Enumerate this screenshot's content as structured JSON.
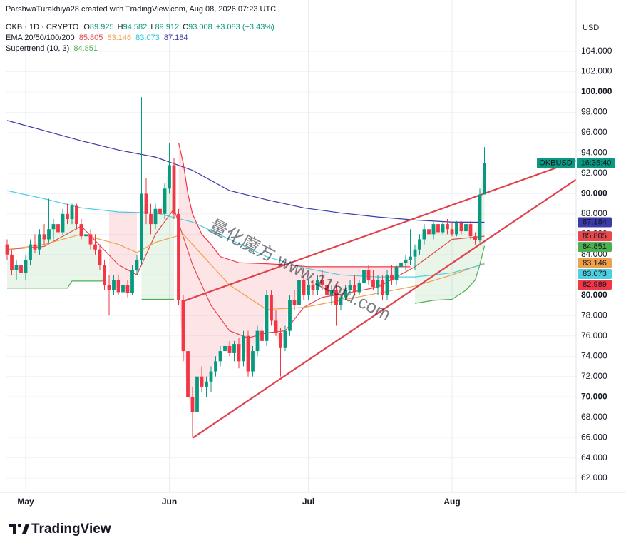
{
  "header": {
    "credit": "ParshwaTurakhiya28 created with TradingView.com, Aug 08, 2026 07:23 UTC",
    "symbol": "OKB · 1D · CRYPTO",
    "ohlc_letters": [
      "O",
      "H",
      "L",
      "C"
    ],
    "change": "+3.083 (+3.43%)",
    "currency": "USD"
  },
  "watermark": "量化魔方 www.11btu.com",
  "footer": {
    "brand": "TradingView"
  },
  "chart_data": {
    "type": "candlestick",
    "categories": [
      null,
      null,
      null,
      null,
      "May",
      null,
      null,
      null,
      null,
      null,
      null,
      null,
      null,
      null,
      null,
      null,
      null,
      null,
      null,
      null,
      null,
      null,
      null,
      null,
      null,
      null,
      null,
      null,
      null,
      null,
      null,
      null,
      null,
      null,
      null,
      "Jun",
      null,
      null,
      null,
      null,
      null,
      null,
      null,
      null,
      null,
      null,
      null,
      null,
      null,
      null,
      null,
      null,
      null,
      null,
      null,
      null,
      null,
      null,
      null,
      null,
      null,
      null,
      null,
      null,
      null,
      "Jul",
      null,
      null,
      null,
      null,
      null,
      null,
      null,
      null,
      null,
      null,
      null,
      null,
      null,
      null,
      null,
      null,
      null,
      null,
      null,
      null,
      null,
      null,
      null,
      null,
      null,
      null,
      null,
      null,
      null,
      null,
      "Aug",
      null,
      null,
      null,
      null,
      null,
      null,
      null
    ],
    "candles": {
      "up_color": "#089981",
      "down_color": "#f23645",
      "open": [
        85,
        84,
        82.5,
        83,
        82.2,
        83.5,
        85,
        84.5,
        86,
        85.5,
        86.5,
        87,
        86.2,
        88,
        87.5,
        88.8,
        87,
        85.8,
        86,
        85,
        84.5,
        83,
        81,
        80.5,
        81.5,
        80.3,
        81,
        80.2,
        82.5,
        83.5,
        90,
        88,
        87,
        88.5,
        88,
        90.5,
        92.8,
        88,
        79.5,
        74.5,
        70,
        68.5,
        72,
        71,
        71.5,
        72.5,
        73.5,
        74.5,
        75,
        74.3,
        75.2,
        73.5,
        76,
        72.5,
        74.5,
        76.5,
        75.5,
        80,
        77.5,
        76.3,
        74.8,
        76.5,
        79.5,
        79,
        81.5,
        80,
        81,
        80.5,
        81.5,
        81,
        80,
        80.5,
        79,
        79.8,
        80.5,
        81,
        80.3,
        81.2,
        82.5,
        81.5,
        80.8,
        81.5,
        80,
        82,
        81.5,
        82.8,
        83.2,
        83.5,
        83.8,
        84.5,
        85.5,
        86.5,
        86,
        87,
        86.2,
        87,
        86.5,
        86,
        87.1,
        86.3,
        87,
        85.8,
        85.4,
        89.925
      ],
      "high": [
        85.5,
        84.5,
        83.5,
        83.8,
        84,
        85.5,
        86,
        86.5,
        87,
        89.5,
        87.5,
        88,
        88.5,
        89,
        89,
        89,
        87.5,
        86.5,
        86.5,
        86,
        85,
        83.5,
        82,
        82,
        82,
        81.5,
        81.5,
        83,
        84,
        99.5,
        91.5,
        89,
        89,
        91,
        91,
        95,
        93.5,
        88.5,
        80,
        75,
        71,
        72.5,
        73,
        72,
        73,
        74,
        75,
        75.5,
        75.5,
        75.5,
        75.8,
        76.5,
        76.5,
        75,
        77,
        77,
        80.5,
        80.5,
        78.5,
        76.8,
        77,
        80,
        80.5,
        82,
        82,
        81.5,
        81.5,
        82,
        82.5,
        82,
        81,
        81,
        80,
        81,
        81.5,
        82,
        81.5,
        83,
        83,
        82.5,
        82,
        82,
        82.5,
        83,
        83,
        83.5,
        84,
        86.5,
        85,
        86,
        87,
        87.5,
        87.2,
        87.5,
        87.3,
        87.5,
        87.2,
        87.3,
        87.3,
        87.2,
        87.3,
        86.2,
        90.5,
        94.582
      ],
      "low": [
        83.5,
        82,
        81.5,
        81.8,
        81.5,
        83,
        84.2,
        84,
        85,
        85.2,
        85.5,
        86,
        86,
        87,
        87,
        86.5,
        85.5,
        84.5,
        84.5,
        84,
        82.5,
        80.5,
        78,
        80,
        80,
        79.8,
        79.8,
        80,
        82,
        83,
        87,
        86,
        86.5,
        86.5,
        87.5,
        90,
        87.5,
        79,
        73.5,
        68,
        66,
        68,
        70.5,
        70,
        70.5,
        72,
        73,
        74,
        74,
        73.5,
        72.8,
        73,
        72,
        72,
        74,
        75,
        75,
        77,
        76,
        72,
        74.5,
        76,
        78.5,
        78.8,
        79.5,
        79.5,
        80,
        80,
        80.5,
        79.5,
        79,
        77,
        78.5,
        79.5,
        80,
        80,
        80,
        80.5,
        81,
        80.5,
        80,
        79.5,
        79.5,
        81,
        81,
        82,
        82.5,
        83,
        82.5,
        84,
        85,
        85.5,
        85.5,
        85.8,
        86,
        86,
        85.8,
        85.8,
        86,
        86,
        85.5,
        85,
        85.2,
        89.912
      ],
      "close": [
        84,
        82.5,
        83,
        82.2,
        83.5,
        85,
        84.5,
        86,
        85.5,
        86.5,
        87,
        86.2,
        88,
        87.5,
        88.8,
        87,
        85.8,
        86,
        85,
        84.5,
        83,
        81,
        80.5,
        81.5,
        80.3,
        81,
        80.2,
        82.5,
        83.5,
        90,
        88,
        87,
        88.5,
        88,
        90.5,
        92.8,
        88,
        79.5,
        74.5,
        70,
        68.5,
        72,
        71,
        71.5,
        72.5,
        73.5,
        74.5,
        75,
        74.3,
        75.2,
        73.5,
        76,
        72.5,
        74.5,
        76.5,
        75.5,
        80,
        77.5,
        76.3,
        74.8,
        76.5,
        79.5,
        79,
        81.5,
        80,
        81,
        80.5,
        81.5,
        81,
        80,
        80.5,
        79,
        79.8,
        80.5,
        81,
        80.3,
        81.2,
        82.5,
        81.5,
        80.8,
        81.5,
        80,
        82,
        81.5,
        82.8,
        83.2,
        83.5,
        83.8,
        84.5,
        85.5,
        86.5,
        86,
        87,
        86.2,
        87,
        86.5,
        86,
        87.1,
        86.3,
        87,
        85.8,
        85.4,
        89.925,
        93.008
      ]
    },
    "ema": {
      "label": "EMA 20/50/100/200",
      "lines": [
        {
          "color": "#e5484d",
          "tag_text": "#ffffff",
          "x": [
            0,
            8,
            16,
            24,
            28,
            32,
            36,
            40,
            44,
            48,
            52,
            56,
            60,
            64,
            68,
            72,
            80,
            88,
            96,
            103
          ],
          "values": [
            84.5,
            84.8,
            86.8,
            83,
            82,
            86,
            88.5,
            83,
            79,
            76.5,
            75.8,
            76.3,
            76.5,
            78.8,
            79.8,
            80.1,
            80.8,
            82.8,
            85.5,
            85.805
          ]
        },
        {
          "color": "#f0a04b",
          "tag_text": "#ffffff",
          "x": [
            0,
            8,
            16,
            24,
            28,
            32,
            38,
            44,
            48,
            56,
            64,
            72,
            80,
            88,
            96,
            103
          ],
          "values": [
            84.5,
            85,
            86,
            85,
            84.2,
            85.2,
            86,
            83,
            81,
            78.6,
            78.8,
            79.5,
            80.2,
            80.9,
            82,
            83.146
          ]
        },
        {
          "color": "#4dd0e1",
          "tag_text": "#131722",
          "x": [
            0,
            8,
            16,
            24,
            32,
            40,
            48,
            56,
            64,
            72,
            80,
            88,
            96,
            103
          ],
          "values": [
            90.3,
            89.5,
            88.6,
            88.2,
            88.1,
            87.2,
            85.5,
            83.8,
            82.7,
            82,
            81.8,
            81.8,
            82.2,
            83.073
          ]
        },
        {
          "color": "#3b3ba8",
          "tag_text": "#ffffff",
          "x": [
            0,
            8,
            16,
            24,
            32,
            40,
            48,
            56,
            64,
            72,
            80,
            88,
            96,
            103
          ],
          "values": [
            97.2,
            96.2,
            95.2,
            94.3,
            93.6,
            92.3,
            90.3,
            89.4,
            88.6,
            88.1,
            87.7,
            87.4,
            87.2,
            87.184
          ]
        }
      ]
    },
    "supertrend": {
      "label": "Supertrend (10, 3)",
      "up_color": "#4caf50",
      "down_color": "#f23645",
      "segments": [
        {
          "direction": "up",
          "x": [
            0,
            13,
            14,
            21
          ],
          "values": [
            80.7,
            80.7,
            81.4,
            81.4
          ]
        },
        {
          "direction": "down",
          "x": [
            22,
            28
          ],
          "values": [
            88.1,
            88.1
          ]
        },
        {
          "direction": "up",
          "x": [
            29,
            36
          ],
          "values": [
            79.6,
            79.6
          ]
        },
        {
          "direction": "down",
          "x": [
            37,
            38,
            39,
            40,
            42,
            44,
            46,
            50,
            56,
            60,
            65,
            87
          ],
          "values": [
            95,
            93,
            90,
            88,
            86,
            85,
            83.8,
            83.2,
            83.1,
            83,
            82.8,
            82.8
          ]
        },
        {
          "direction": "up",
          "x": [
            88,
            92,
            96,
            99,
            101,
            102,
            103
          ],
          "values": [
            79.2,
            79.5,
            79.6,
            80.5,
            81.5,
            83,
            84.851
          ]
        }
      ]
    },
    "trendlines": [
      {
        "color": "#e0424b",
        "x": [
          38,
          122.8
        ],
        "values": [
          79.42,
          93.25
        ]
      },
      {
        "color": "#e0424b",
        "x": [
          40,
          122.8
        ],
        "values": [
          65.94,
          91.4
        ]
      }
    ],
    "price_tags": [
      {
        "value": 82.989,
        "color": "#f23645"
      }
    ],
    "symbol_tag": "OKBUSD",
    "countdown": "16:36:40",
    "ylim": [
      60.6,
      109.06
    ],
    "yticks": [
      {
        "value": 62,
        "label": "62.000"
      },
      {
        "value": 64,
        "label": "64.000"
      },
      {
        "value": 66,
        "label": "66.000"
      },
      {
        "value": 68,
        "label": "68.000"
      },
      {
        "value": 70,
        "label": "70.000"
      },
      {
        "value": 72,
        "label": "72.000"
      },
      {
        "value": 74,
        "label": "74.000"
      },
      {
        "value": 76,
        "label": "76.000"
      },
      {
        "value": 78,
        "label": "78.000"
      },
      {
        "value": 80,
        "label": "80.000"
      },
      {
        "value": 82,
        "label": "82.000"
      },
      {
        "value": 84,
        "label": "84.000"
      },
      {
        "value": 86,
        "label": "86.000"
      },
      {
        "value": 88,
        "label": "88.000"
      },
      {
        "value": 90,
        "label": "90.000"
      },
      {
        "value": 92,
        "label": "92.000"
      },
      {
        "value": 94,
        "label": "94.000"
      },
      {
        "value": 96,
        "label": "96.000"
      },
      {
        "value": 98,
        "label": "98.000"
      },
      {
        "value": 100,
        "label": "100.000"
      },
      {
        "value": 102,
        "label": "102.000"
      },
      {
        "value": 104,
        "label": "104.000"
      }
    ],
    "grid": true
  }
}
